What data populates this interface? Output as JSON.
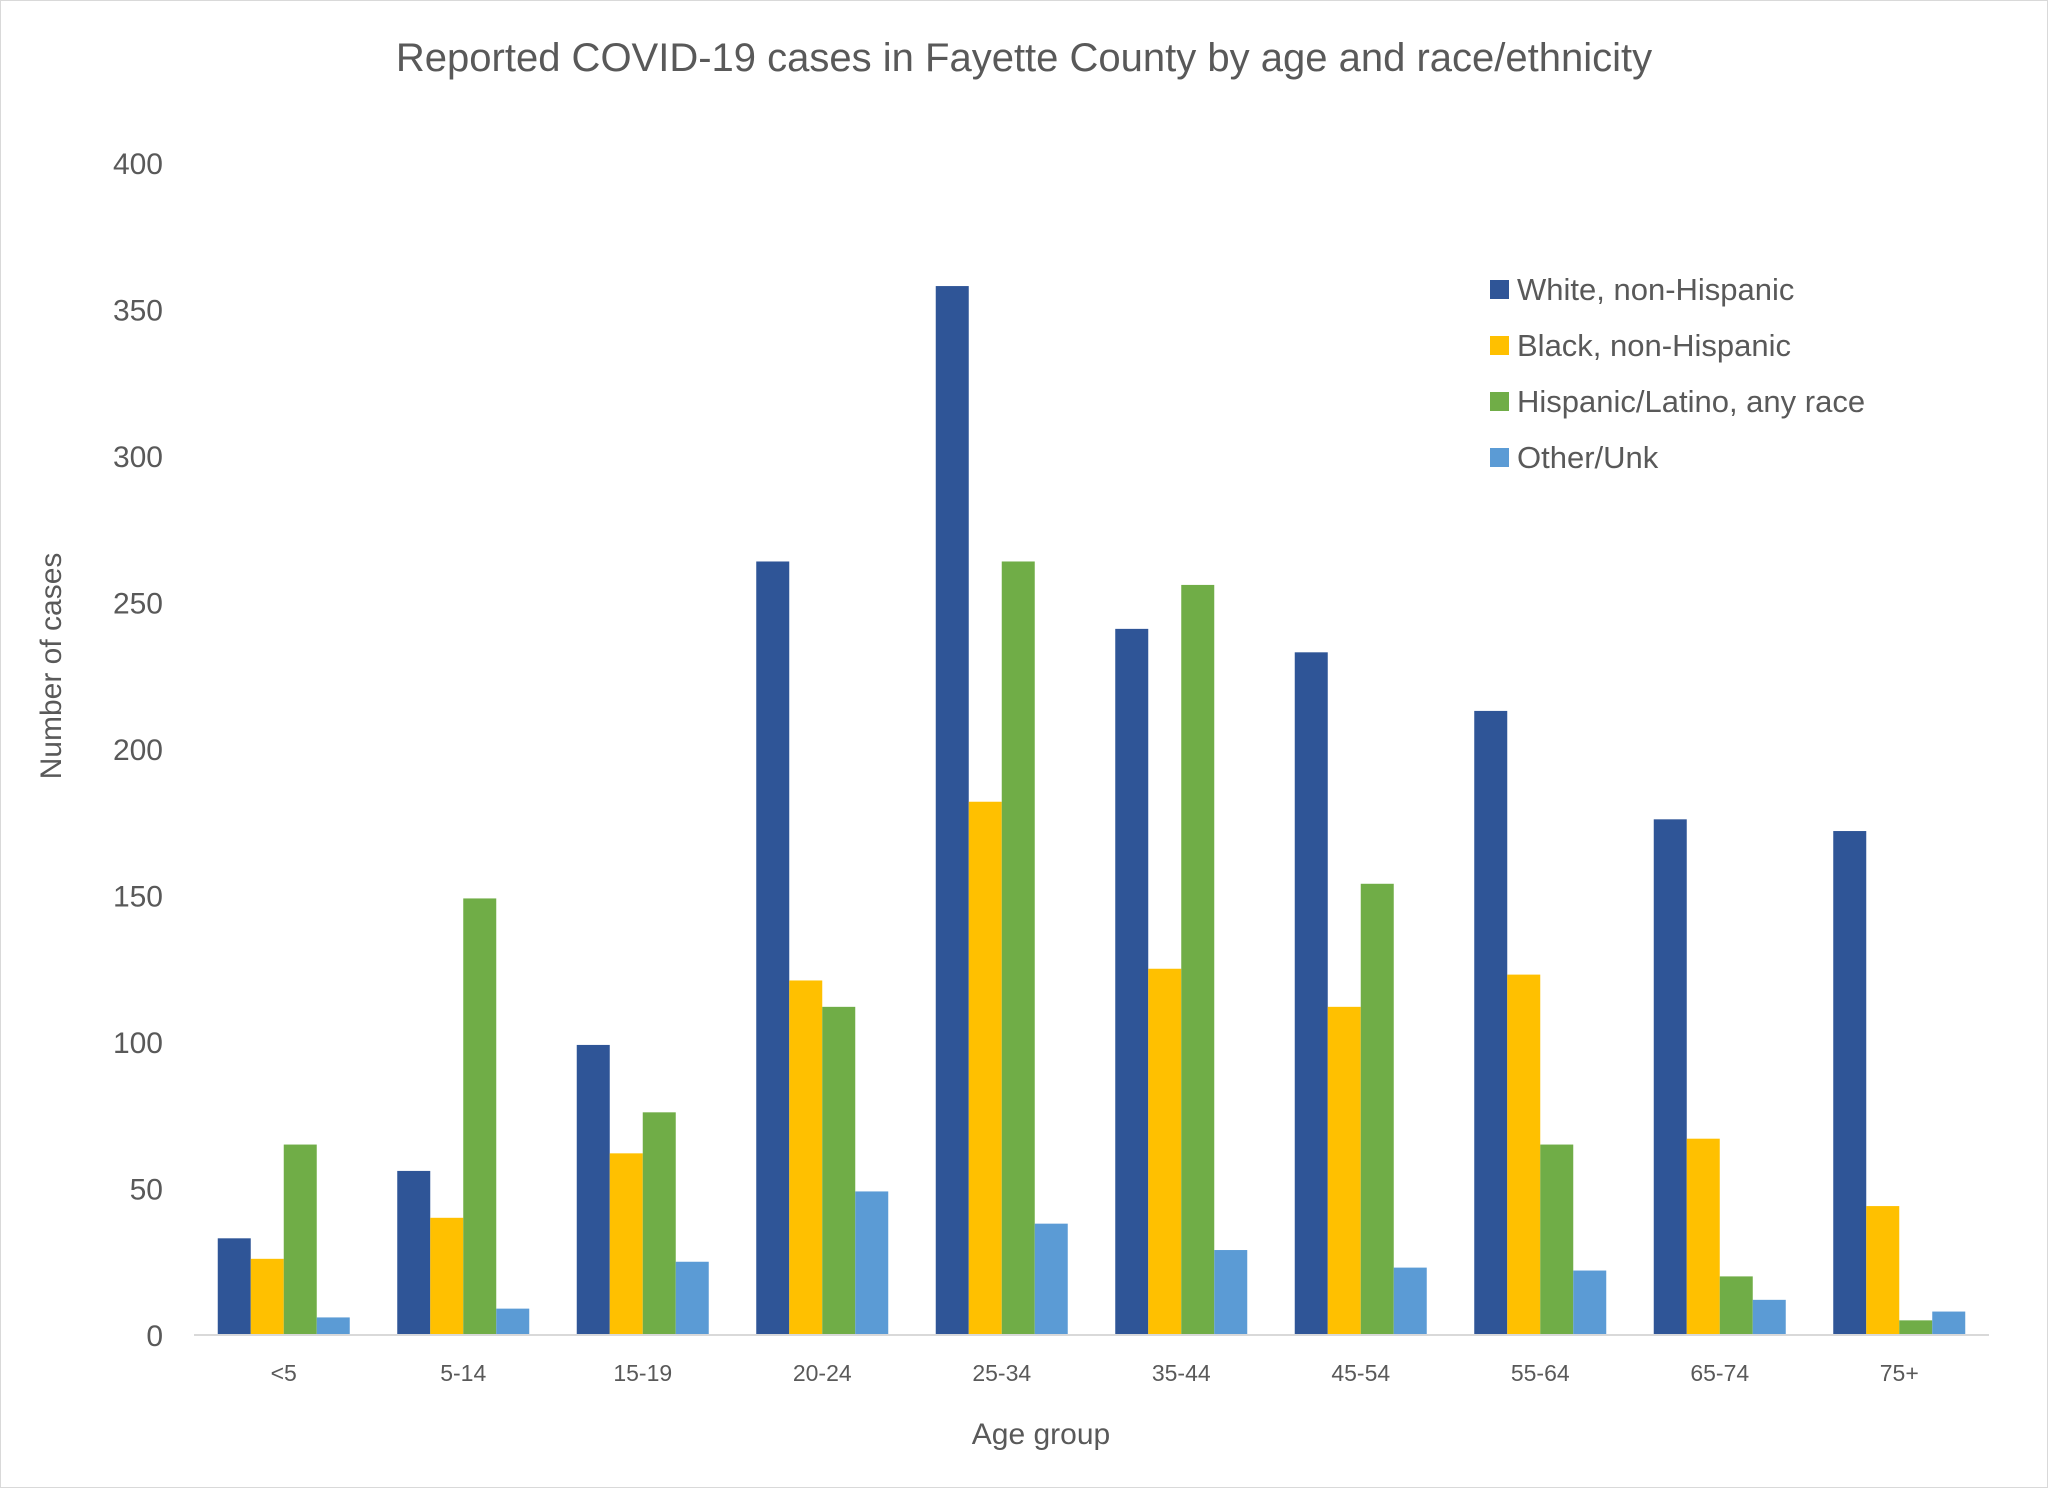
{
  "chart_data": {
    "type": "bar",
    "title": "Reported COVID-19 cases in Fayette County by age and race/ethnicity",
    "xlabel": "Age group",
    "ylabel": "Number of cases",
    "ylim": [
      0,
      400
    ],
    "yticks": [
      0,
      50,
      100,
      150,
      200,
      250,
      300,
      350,
      400
    ],
    "grid": false,
    "legend_position": "top-right",
    "categories": [
      "<5",
      "5-14",
      "15-19",
      "20-24",
      "25-34",
      "35-44",
      "45-54",
      "55-64",
      "65-74",
      "75+"
    ],
    "series": [
      {
        "name": "White, non-Hispanic",
        "color": "#2f5597",
        "values": [
          33,
          56,
          99,
          264,
          358,
          241,
          233,
          213,
          176,
          172
        ]
      },
      {
        "name": "Black, non-Hispanic",
        "color": "#ffc000",
        "values": [
          26,
          40,
          62,
          121,
          182,
          125,
          112,
          123,
          67,
          44
        ]
      },
      {
        "name": "Hispanic/Latino, any race",
        "color": "#70ad47",
        "values": [
          65,
          149,
          76,
          112,
          264,
          256,
          154,
          65,
          20,
          5
        ]
      },
      {
        "name": "Other/Unk",
        "color": "#5b9bd5",
        "values": [
          6,
          9,
          25,
          49,
          38,
          29,
          23,
          22,
          12,
          8
        ]
      }
    ]
  }
}
